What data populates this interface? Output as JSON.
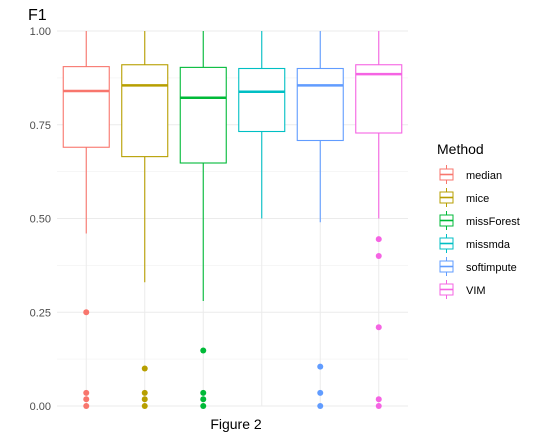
{
  "chart_data": {
    "type": "boxplot",
    "title": "F1",
    "xlabel": "Figure 2",
    "ylabel": "",
    "ylim": [
      0,
      1
    ],
    "yticks": [
      "0.00",
      "0.25",
      "0.50",
      "0.75",
      "1.00"
    ],
    "legend": {
      "title": "Method",
      "position": "right"
    },
    "series": [
      {
        "name": "median",
        "color": "#F8766D",
        "whisker_low": 0.46,
        "q1": 0.69,
        "median": 0.84,
        "q3": 0.905,
        "whisker_high": 1.0,
        "outliers": [
          0.25,
          0.035,
          0.018,
          0.0
        ]
      },
      {
        "name": "mice",
        "color": "#B79F00",
        "whisker_low": 0.33,
        "q1": 0.665,
        "median": 0.855,
        "q3": 0.91,
        "whisker_high": 1.0,
        "outliers": [
          0.1,
          0.035,
          0.018,
          0.0
        ]
      },
      {
        "name": "missForest",
        "color": "#00BA38",
        "whisker_low": 0.28,
        "q1": 0.648,
        "median": 0.822,
        "q3": 0.903,
        "whisker_high": 1.0,
        "outliers": [
          0.148,
          0.035,
          0.018,
          0.0
        ]
      },
      {
        "name": "missmda",
        "color": "#00BFC4",
        "whisker_low": 0.5,
        "q1": 0.732,
        "median": 0.838,
        "q3": 0.9,
        "whisker_high": 1.0,
        "outliers": []
      },
      {
        "name": "softimpute",
        "color": "#619CFF",
        "whisker_low": 0.49,
        "q1": 0.708,
        "median": 0.855,
        "q3": 0.9,
        "whisker_high": 1.0,
        "outliers": [
          0.105,
          0.035,
          0.0
        ]
      },
      {
        "name": "VIM",
        "color": "#F564E3",
        "whisker_low": 0.5,
        "q1": 0.728,
        "median": 0.885,
        "q3": 0.91,
        "whisker_high": 1.0,
        "outliers": [
          0.445,
          0.4,
          0.21,
          0.018,
          0.0
        ]
      }
    ]
  }
}
